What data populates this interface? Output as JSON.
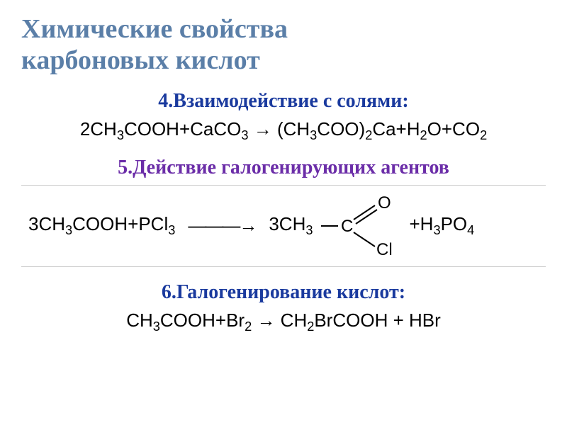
{
  "title_line1": "Химические свойства",
  "title_line2": "карбоновых кислот",
  "section4": {
    "heading": "4.Взаимодействие с солями:",
    "equation_html": "2CH<sub>3</sub>COOH+CaCO<sub>3</sub> → (CH<sub>3</sub>COO)<sub>2</sub>Ca+H<sub>2</sub>O+CO<sub>2</sub>",
    "color": "#1a3a9e"
  },
  "section5": {
    "heading": "5.Действие галогенирующих агентов",
    "reactant_html": "3CH<sub>3</sub>COOH+PCl<sub>3</sub>",
    "product_prefix_html": "3CH<sub>3</sub>",
    "tail_html": "+H<sub>3</sub>PO<sub>4</sub>",
    "color": "#6b2da8",
    "structure": {
      "c_label": "C",
      "o_label": "O",
      "cl_label": "Cl",
      "stroke": "#000000",
      "stroke_w": 2,
      "font_size": 24
    }
  },
  "section6": {
    "heading": "6.Галогенирование кислот:",
    "equation_html": "CH<sub>3</sub>COOH+Br<sub>2</sub> → CH<sub>2</sub>BrCOOH + HBr",
    "color": "#1a3a9e"
  },
  "colors": {
    "title": "#5b7fa8",
    "text": "#000000",
    "bg": "#ffffff"
  },
  "fonts": {
    "title_size": 38,
    "heading_size": 28,
    "equation_size": 26
  }
}
